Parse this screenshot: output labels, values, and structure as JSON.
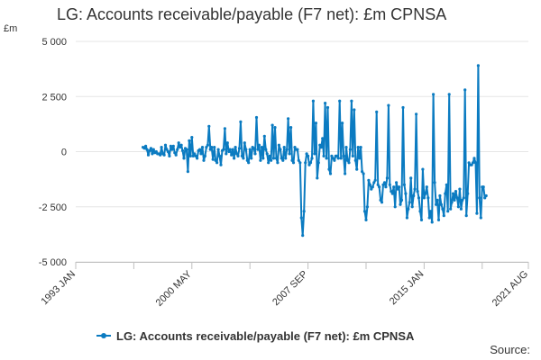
{
  "title": "LG: Accounts receivable/payable (F7 net): £m CPNSA",
  "source_label": "Source:",
  "chart_data": {
    "type": "line",
    "title": "LG: Accounts receivable/payable (F7 net): £m CPNSA",
    "ylabel": "£m",
    "xlabel": "",
    "ylim": [
      -5000,
      5000
    ],
    "y_ticks": [
      5000,
      2500,
      0,
      -2500,
      -5000
    ],
    "y_tick_labels": [
      "5 000",
      "2 500",
      "0",
      "-2 500",
      "-5 000"
    ],
    "xlim": [
      "1993-01",
      "2021-08"
    ],
    "x_tick_labels": [
      {
        "label": "1993 JAN",
        "date": "1993-01"
      },
      {
        "label": "2000 MAY",
        "date": "2000-05"
      },
      {
        "label": "2007 SEP",
        "date": "2007-09"
      },
      {
        "label": "2015 JAN",
        "date": "2015-01"
      },
      {
        "label": "2021 AUG",
        "date": "2021-08"
      }
    ],
    "x_minor_ticks": [
      "1993-01",
      "1996-09",
      "2000-05",
      "2004-01",
      "2007-09",
      "2011-05",
      "2015-01",
      "2018-09",
      "2021-08"
    ],
    "grid": true,
    "legend_position": "bottom",
    "series": [
      {
        "name": "LG: Accounts receivable/payable (F7 net): £m CPNSA",
        "color": "#0b7bc1",
        "start": "1997-04",
        "values": [
          200,
          150,
          250,
          100,
          -150,
          50,
          150,
          -100,
          100,
          -50,
          0,
          -100,
          -100,
          -150,
          200,
          -100,
          -150,
          300,
          100,
          0,
          -200,
          250,
          100,
          250,
          -50,
          -150,
          100,
          400,
          200,
          300,
          50,
          -300,
          150,
          100,
          -900,
          500,
          -200,
          650,
          -200,
          -100,
          -200,
          -300,
          50,
          100,
          -100,
          200,
          -400,
          -200,
          200,
          300,
          1150,
          100,
          200,
          -350,
          200,
          -400,
          -500,
          100,
          -200,
          -600,
          50,
          100,
          1050,
          -100,
          400,
          0,
          100,
          -150,
          100,
          -300,
          200,
          -100,
          -200,
          150,
          1350,
          -200,
          -300,
          400,
          100,
          -400,
          -500,
          100,
          -300,
          200,
          150,
          -100,
          1550,
          100,
          300,
          -400,
          200,
          -300,
          700,
          100,
          -100,
          -500,
          -200,
          -400,
          1200,
          -300,
          1100,
          -300,
          -500,
          300,
          100,
          -300,
          -400,
          200,
          -300,
          100,
          1500,
          -100,
          1100,
          -400,
          -500,
          200,
          100,
          100,
          -400,
          -500,
          -3000,
          -3800,
          -2700,
          -500,
          -100,
          -200,
          -600,
          -500,
          -300,
          2300,
          -100,
          1300,
          -1200,
          -500,
          300,
          200,
          600,
          -200,
          2200,
          -300,
          2000,
          -800,
          -1000,
          -200,
          -300,
          -400,
          -200,
          -200,
          -300,
          2300,
          -300,
          1300,
          -200,
          -1000,
          200,
          -400,
          -500,
          100,
          2300,
          -200,
          1900,
          -400,
          -800,
          200,
          -300,
          200,
          -900,
          -1000,
          -2700,
          -3100,
          -2500,
          -1300,
          -1500,
          -1700,
          -1600,
          -1400,
          -1300,
          1800,
          -1500,
          -1600,
          -2200,
          -2300,
          -1500,
          -1400,
          -1600,
          -1200,
          2100,
          -1500,
          -1800,
          -1900,
          -1600,
          -2500,
          -1400,
          -1700,
          -1600,
          -2400,
          -2200,
          2000,
          -1500,
          -1900,
          -3000,
          -2600,
          -2300,
          -1200,
          -2500,
          -2000,
          -1700,
          1700,
          -1800,
          -2100,
          -2700,
          -3100,
          -800,
          -2100,
          -1900,
          -1600,
          -2100,
          -3000,
          -2700,
          -3200,
          2600,
          -1400,
          -2400,
          -2200,
          -3100,
          -2000,
          -2400,
          -2600,
          -2900,
          -1900,
          -1500,
          -2700,
          2600,
          -2600,
          -2300,
          -1900,
          -2200,
          -1800,
          -2100,
          -2500,
          -1700,
          -2600,
          -2200,
          -2100,
          2800,
          -2900,
          -1900,
          -500,
          -600,
          -600,
          -500,
          -300,
          -500,
          -2800,
          3900,
          -2100,
          -3000,
          -1600,
          -1600,
          -2100,
          -2000
        ]
      }
    ]
  }
}
